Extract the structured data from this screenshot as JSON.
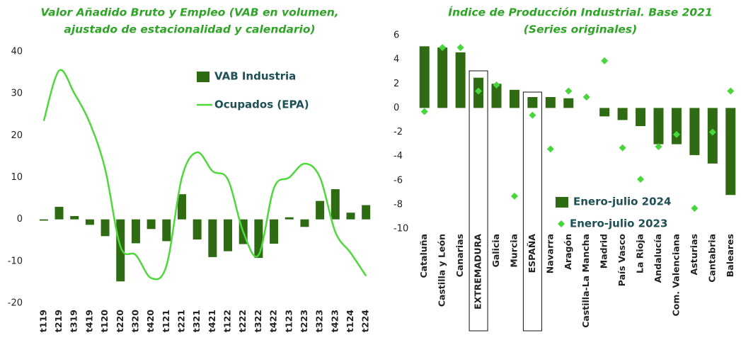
{
  "chart_data": [
    {
      "type": "combo",
      "title": [
        "Valor Añadido Bruto y Empleo (VAB en volumen,",
        "ajustado de estacionalidad y calendario)"
      ],
      "categories": [
        "t119",
        "t219",
        "t319",
        "t419",
        "t120",
        "t220",
        "t320",
        "t420",
        "t121",
        "t221",
        "t321",
        "t421",
        "t122",
        "t222",
        "t322",
        "t422",
        "t123",
        "t223",
        "t323",
        "t423",
        "t124",
        "t224"
      ],
      "series": [
        {
          "name": "VAB Industria",
          "type": "bar",
          "color": "#2e6b12",
          "values": [
            -0.3,
            3.0,
            0.8,
            -1.3,
            -4.0,
            -14.8,
            -5.7,
            -2.3,
            -5.2,
            6.0,
            -4.8,
            -9.0,
            -7.6,
            -5.9,
            -9.2,
            -5.8,
            0.5,
            -1.8,
            4.4,
            7.2,
            1.6,
            3.4
          ]
        },
        {
          "name": "Ocupados (EPA)",
          "type": "line",
          "color": "#4fd83c",
          "values": [
            23.5,
            35.5,
            30,
            23,
            12,
            -6.5,
            -8.5,
            -14,
            -11,
            10,
            16,
            11.5,
            9.5,
            -3,
            -8.5,
            7.5,
            10,
            13.3,
            10,
            -3,
            -8,
            -13.5
          ]
        }
      ],
      "ylim": [
        -20,
        40
      ],
      "yticks": [
        -20,
        -10,
        0,
        10,
        20,
        30,
        40
      ]
    },
    {
      "type": "combo",
      "title": [
        "Índice de Producción Industrial. Base 2021",
        "(Series originales)"
      ],
      "categories": [
        "Cataluña",
        "Castilla y León",
        "Canarias",
        "EXTREMADURA",
        "Galicia",
        "Murcia",
        "ESPAÑA",
        "Navarra",
        "Aragón",
        "Castilla-La Mancha",
        "Madrid",
        "País Vasco",
        "La Rioja",
        "Andalucía",
        "Com. Valenciana",
        "Asturias",
        "Cantabria",
        "Baleares"
      ],
      "highlight": [
        3,
        6
      ],
      "series": [
        {
          "name": "Enero-julio 2024",
          "type": "bar",
          "color": "#2e6b12",
          "values": [
            5.1,
            5.0,
            4.6,
            2.5,
            2.0,
            1.5,
            0.9,
            0.9,
            0.8,
            0,
            -0.7,
            -1.0,
            -1.5,
            -3.0,
            -3.0,
            -3.9,
            -4.6,
            -7.2
          ]
        },
        {
          "name": "Enero-julio 2023",
          "type": "scatter",
          "marker": "diamond",
          "color": "#47d63b",
          "values": [
            -0.3,
            5.0,
            5.0,
            1.4,
            1.9,
            -7.3,
            -0.6,
            -3.4,
            1.4,
            0.9,
            3.9,
            -3.3,
            -5.9,
            -3.2,
            -2.2,
            -8.3,
            -2.0,
            1.4
          ]
        }
      ],
      "ylim": [
        -10,
        6
      ],
      "yticks": [
        -10,
        -8,
        -6,
        -4,
        -2,
        0,
        2,
        4,
        6
      ]
    }
  ]
}
